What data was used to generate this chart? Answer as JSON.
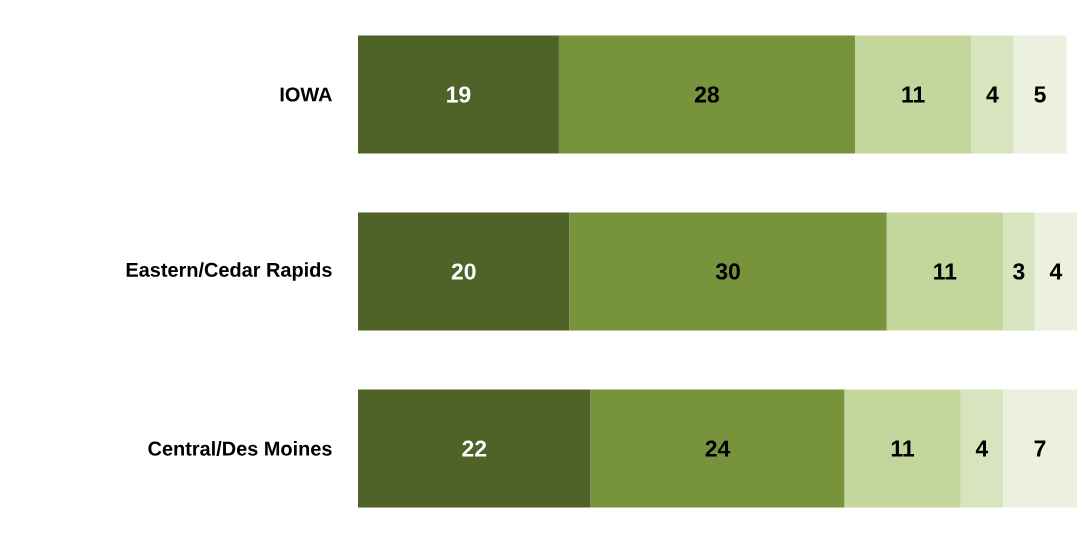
{
  "chart_data": {
    "type": "bar",
    "orientation": "horizontal",
    "stacked": true,
    "data_labels": true,
    "tick_labels": "y",
    "categories": [
      "IOWA",
      "Eastern/Cedar Rapids",
      "Central/Des Moines"
    ],
    "series": [
      {
        "color": "#4f6228",
        "values": [
          19,
          20,
          22
        ]
      },
      {
        "color": "#77933c",
        "values": [
          28,
          30,
          24
        ]
      },
      {
        "color": "#c3d69b",
        "values": [
          11,
          11,
          11
        ]
      },
      {
        "color": "#d7e4bd",
        "values": [
          4,
          3,
          4
        ]
      },
      {
        "color": "#ebf1de",
        "values": [
          5,
          4,
          7
        ]
      }
    ]
  }
}
